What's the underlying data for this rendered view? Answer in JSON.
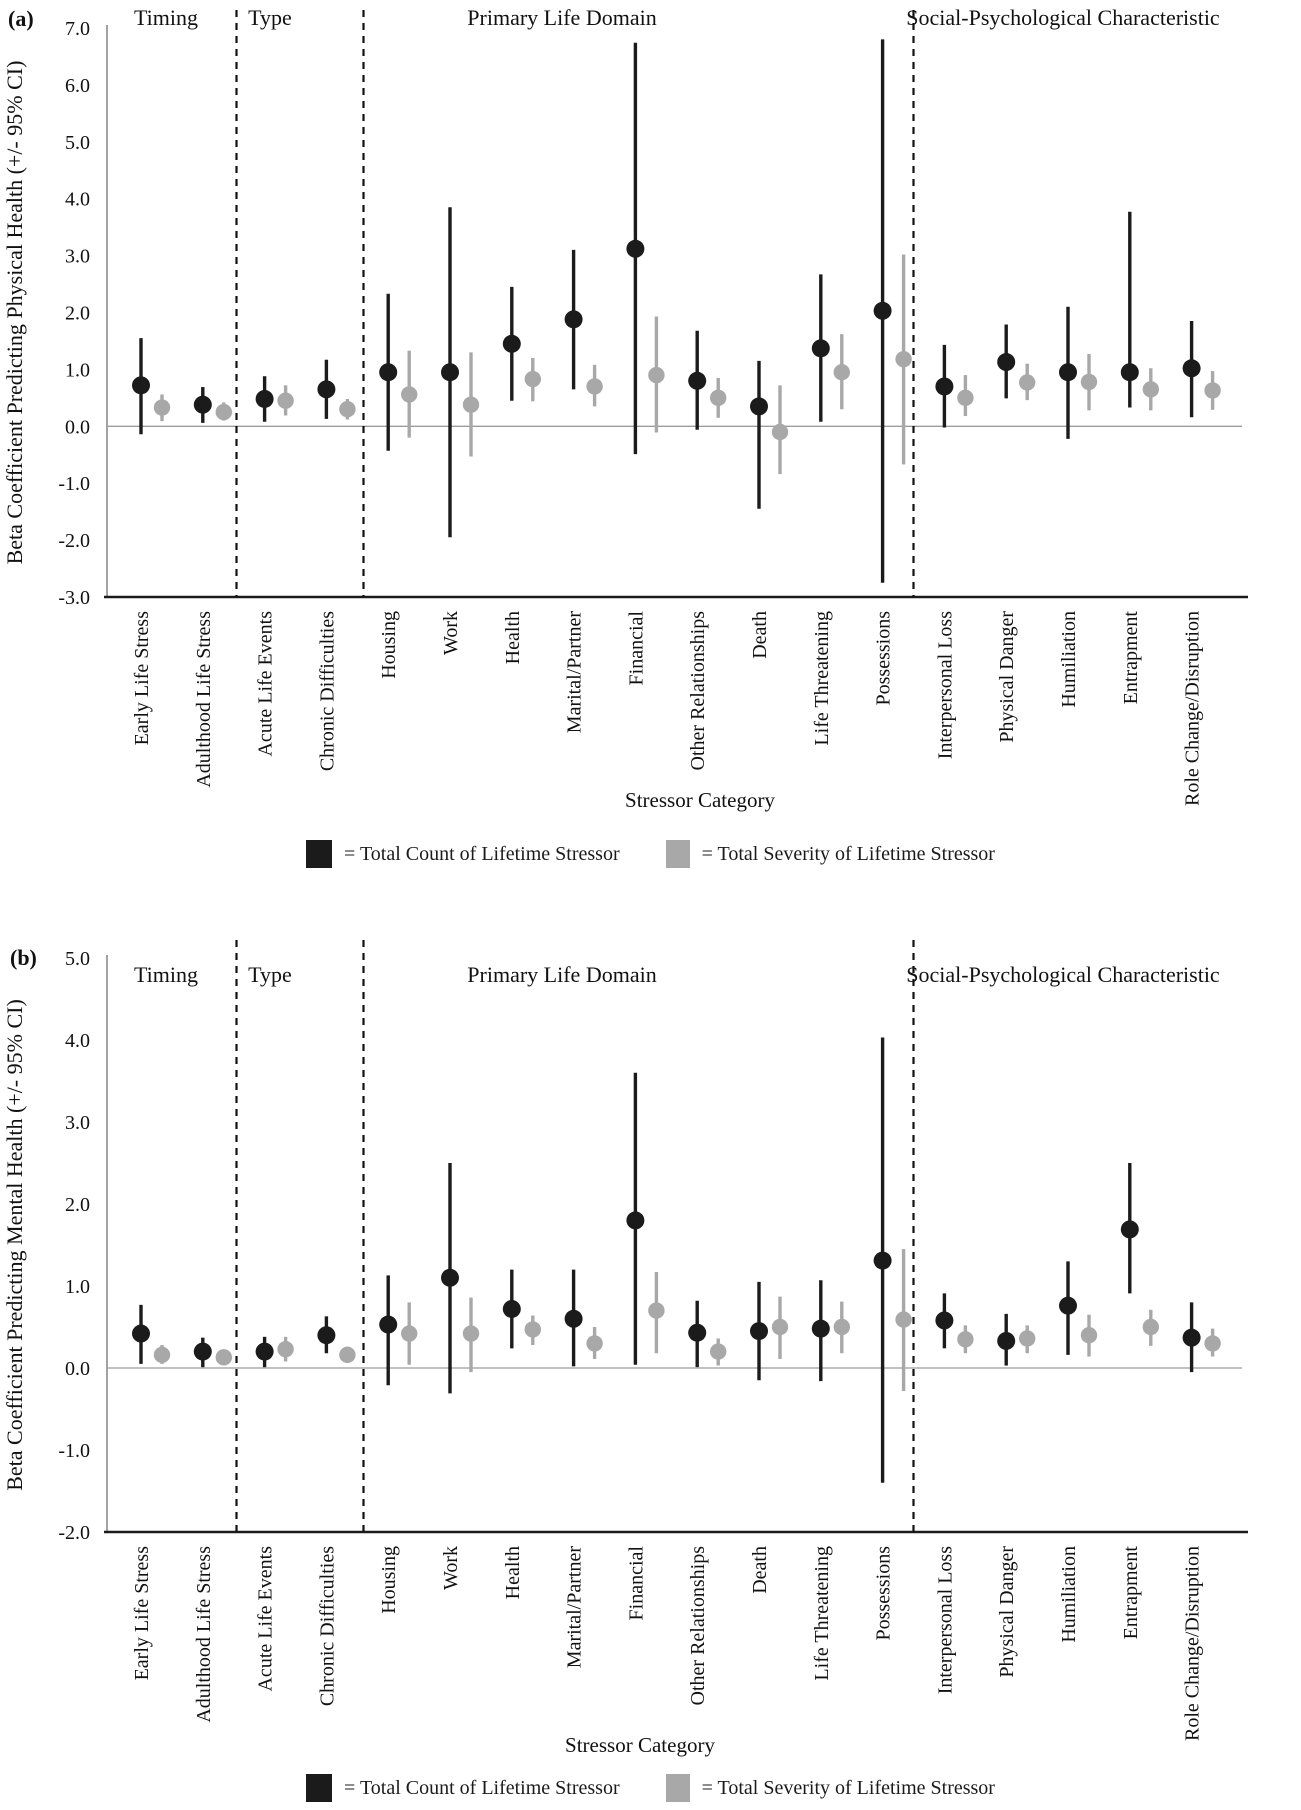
{
  "figure": {
    "background": "#ffffff",
    "accent_black": "#1b1b1b",
    "accent_gray": "#a8a8a8"
  },
  "legend": {
    "count_label": "= Total Count of Lifetime Stressor",
    "severity_label": "= Total Severity of Lifetime Stressor",
    "count_color": "#1b1b1b",
    "severity_color": "#a8a8a8"
  },
  "chart_data": [
    {
      "type": "scatter",
      "panel_label": "(a)",
      "ylabel": "Beta Coefficient Predicting Physical Health (+/- 95% CI)",
      "xlabel": "Stressor Category",
      "ylim": [
        -3,
        7
      ],
      "yticks": [
        "7.0",
        "6.0",
        "5.0",
        "4.0",
        "3.0",
        "2.0",
        "1.0",
        "0.0",
        "-1.0",
        "-2.0",
        "-3.0"
      ],
      "grid": false,
      "legend_position": "bottom",
      "sections": [
        {
          "label": "Timing",
          "from": 0,
          "to": 1
        },
        {
          "label": "Type",
          "from": 2,
          "to": 3
        },
        {
          "label": "Primary Life Domain",
          "from": 4,
          "to": 12
        },
        {
          "label": "Social-Psychological Characteristic",
          "from": 13,
          "to": 17
        }
      ],
      "categories": [
        "Early Life Stress",
        "Adulthood Life Stress",
        "Acute Life Events",
        "Chronic Difficulties",
        "Housing",
        "Work",
        "Health",
        "Marital/Partner",
        "Financial",
        "Other Relationships",
        "Death",
        "Life Threatening",
        "Possessions",
        "Interpersonal Loss",
        "Physical Danger",
        "Humiliation",
        "Entrapment",
        "Role Change/Disruption"
      ],
      "series": [
        {
          "name": "Total Count of Lifetime Stressor",
          "color": "#1b1b1b",
          "points": [
            [
              0.72,
              -0.14,
              1.55
            ],
            [
              0.38,
              0.06,
              0.69
            ],
            [
              0.48,
              0.08,
              0.88
            ],
            [
              0.65,
              0.13,
              1.17
            ],
            [
              0.95,
              -0.43,
              2.33
            ],
            [
              0.95,
              -1.95,
              3.85
            ],
            [
              1.45,
              0.45,
              2.45
            ],
            [
              1.88,
              0.65,
              3.1
            ],
            [
              3.12,
              -0.49,
              6.74
            ],
            [
              0.8,
              -0.06,
              1.68
            ],
            [
              0.35,
              -1.45,
              1.15
            ],
            [
              1.37,
              0.08,
              2.67
            ],
            [
              2.03,
              -2.75,
              6.8
            ],
            [
              0.7,
              -0.02,
              1.43
            ],
            [
              1.13,
              0.49,
              1.79
            ],
            [
              0.95,
              -0.22,
              2.1
            ],
            [
              0.95,
              0.33,
              3.77
            ],
            [
              1.02,
              0.16,
              1.85
            ]
          ]
        },
        {
          "name": "Total Severity of Lifetime Stressor",
          "color": "#a8a8a8",
          "points": [
            [
              0.33,
              0.09,
              0.56
            ],
            [
              0.25,
              0.1,
              0.42
            ],
            [
              0.45,
              0.19,
              0.72
            ],
            [
              0.3,
              0.12,
              0.48
            ],
            [
              0.56,
              -0.2,
              1.33
            ],
            [
              0.38,
              -0.53,
              1.3
            ],
            [
              0.83,
              0.44,
              1.2
            ],
            [
              0.7,
              0.35,
              1.08
            ],
            [
              0.9,
              -0.11,
              1.93
            ],
            [
              0.5,
              0.15,
              0.85
            ],
            [
              -0.1,
              -0.84,
              0.72
            ],
            [
              0.95,
              0.3,
              1.62
            ],
            [
              1.18,
              -0.67,
              3.02
            ],
            [
              0.5,
              0.18,
              0.9
            ],
            [
              0.77,
              0.46,
              1.1
            ],
            [
              0.78,
              0.28,
              1.27
            ],
            [
              0.65,
              0.28,
              1.02
            ],
            [
              0.63,
              0.29,
              0.97
            ]
          ]
        }
      ]
    },
    {
      "type": "scatter",
      "panel_label": "(b)",
      "ylabel": "Beta Coefficient Predicting Mental Health (+/- 95% CI)",
      "xlabel": "Stressor Category",
      "ylim": [
        -2,
        5
      ],
      "yticks": [
        "5.0",
        "4.0",
        "3.0",
        "2.0",
        "1.0",
        "0.0",
        "-1.0",
        "-2.0"
      ],
      "grid": false,
      "legend_position": "bottom",
      "sections": [
        {
          "label": "Timing",
          "from": 0,
          "to": 1
        },
        {
          "label": "Type",
          "from": 2,
          "to": 3
        },
        {
          "label": "Primary Life Domain",
          "from": 4,
          "to": 12
        },
        {
          "label": "Social-Psychological Characteristic",
          "from": 13,
          "to": 17
        }
      ],
      "categories": [
        "Early Life Stress",
        "Adulthood Life Stress",
        "Acute Life Events",
        "Chronic Difficulties",
        "Housing",
        "Work",
        "Health",
        "Marital/Partner",
        "Financial",
        "Other Relationships",
        "Death",
        "Life Threatening",
        "Possessions",
        "Interpersonal Loss",
        "Physical Danger",
        "Humiliation",
        "Entrapment",
        "Role Change/Disruption"
      ],
      "series": [
        {
          "name": "Total Count of Lifetime Stressor",
          "color": "#1b1b1b",
          "points": [
            [
              0.42,
              0.05,
              0.77
            ],
            [
              0.2,
              0.01,
              0.37
            ],
            [
              0.2,
              0.01,
              0.38
            ],
            [
              0.4,
              0.18,
              0.63
            ],
            [
              0.53,
              -0.21,
              1.13
            ],
            [
              1.1,
              -0.31,
              2.5
            ],
            [
              0.72,
              0.24,
              1.2
            ],
            [
              0.6,
              0.02,
              1.2
            ],
            [
              1.8,
              0.04,
              3.6
            ],
            [
              0.43,
              0.01,
              0.82
            ],
            [
              0.45,
              -0.15,
              1.05
            ],
            [
              0.48,
              -0.16,
              1.07
            ],
            [
              1.31,
              -1.4,
              4.03
            ],
            [
              0.58,
              0.24,
              0.91
            ],
            [
              0.33,
              0.03,
              0.66
            ],
            [
              0.76,
              0.16,
              1.3
            ],
            [
              1.69,
              0.91,
              2.5
            ],
            [
              0.37,
              -0.05,
              0.8
            ]
          ]
        },
        {
          "name": "Total Severity of Lifetime Stressor",
          "color": "#a8a8a8",
          "points": [
            [
              0.16,
              0.05,
              0.28
            ],
            [
              0.13,
              0.04,
              0.22
            ],
            [
              0.23,
              0.08,
              0.38
            ],
            [
              0.16,
              0.07,
              0.26
            ],
            [
              0.42,
              0.04,
              0.8
            ],
            [
              0.42,
              -0.05,
              0.86
            ],
            [
              0.47,
              0.28,
              0.64
            ],
            [
              0.3,
              0.11,
              0.5
            ],
            [
              0.7,
              0.18,
              1.17
            ],
            [
              0.2,
              0.03,
              0.36
            ],
            [
              0.5,
              0.11,
              0.87
            ],
            [
              0.5,
              0.18,
              0.81
            ],
            [
              0.59,
              -0.28,
              1.45
            ],
            [
              0.35,
              0.18,
              0.52
            ],
            [
              0.36,
              0.18,
              0.52
            ],
            [
              0.4,
              0.14,
              0.65
            ],
            [
              0.5,
              0.27,
              0.71
            ],
            [
              0.3,
              0.14,
              0.48
            ]
          ]
        }
      ]
    }
  ]
}
